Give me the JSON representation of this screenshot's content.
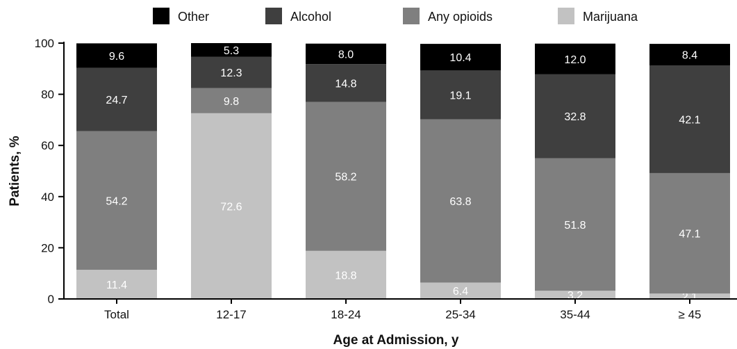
{
  "chart_data": {
    "type": "bar",
    "stacked": true,
    "categories": [
      "Total",
      "12-17",
      "18-24",
      "25-34",
      "35-44",
      "≥ 45"
    ],
    "series": [
      {
        "name": "Marijuana",
        "color": "#c2c2c2",
        "values": [
          11.4,
          72.6,
          18.8,
          6.4,
          3.2,
          2.1
        ]
      },
      {
        "name": "Any opioids",
        "color": "#7f7f7f",
        "values": [
          54.2,
          9.8,
          58.2,
          63.8,
          51.8,
          47.1
        ]
      },
      {
        "name": "Alcohol",
        "color": "#3f3f3f",
        "values": [
          24.7,
          12.3,
          14.8,
          19.1,
          32.8,
          42.1
        ]
      },
      {
        "name": "Other",
        "color": "#000000",
        "values": [
          9.6,
          5.3,
          8.0,
          10.4,
          12.0,
          8.4
        ]
      }
    ],
    "legend_order": [
      "Other",
      "Alcohol",
      "Any opioids",
      "Marijuana"
    ],
    "legend_position": "top",
    "xlabel": "Age at Admission, y",
    "ylabel": "Patients, %",
    "ylim": [
      0,
      100
    ],
    "yticks": [
      0,
      20,
      40,
      60,
      80,
      100
    ],
    "grid": false
  }
}
